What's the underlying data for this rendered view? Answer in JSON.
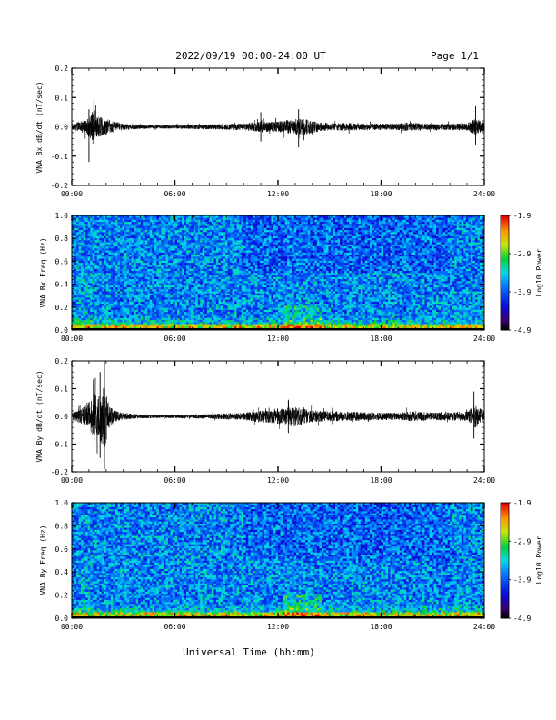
{
  "header": {
    "title": "2022/09/19  00:00-24:00 UT",
    "page": "Page 1/1"
  },
  "xlabel": "Universal Time (hh:mm)",
  "colorbar": {
    "label": "Log10 Power",
    "min": -4.9,
    "max": -1.9,
    "ticks": [
      "-1.9",
      "-2.9",
      "-3.9",
      "-4.9"
    ]
  },
  "chart_data": [
    {
      "id": "bx-timeseries",
      "type": "line",
      "ylabel": "VNA Bx dB/dt (nT/sec)",
      "xlim": [
        0,
        24
      ],
      "ylim": [
        -0.2,
        0.2
      ],
      "x_ticks": [
        "00:00",
        "06:00",
        "12:00",
        "18:00",
        "24:00"
      ],
      "y_ticks": [
        "0.2",
        "0.1",
        "0.0",
        "-0.1",
        "-0.2"
      ],
      "envelope": {
        "hours": [
          0,
          0.5,
          1.0,
          1.3,
          1.5,
          2.0,
          2.5,
          3.0,
          4.0,
          5.0,
          6.0,
          7.0,
          8.0,
          9.0,
          10.0,
          10.5,
          11.0,
          11.5,
          12.0,
          12.5,
          13.0,
          13.5,
          14.0,
          14.5,
          15.0,
          16.0,
          17.0,
          18.0,
          19.0,
          19.5,
          20.0,
          21.0,
          22.0,
          23.0,
          23.5,
          24.0
        ],
        "amplitude": [
          0.018,
          0.03,
          0.05,
          0.11,
          0.06,
          0.045,
          0.03,
          0.018,
          0.012,
          0.01,
          0.01,
          0.012,
          0.014,
          0.016,
          0.02,
          0.025,
          0.03,
          0.028,
          0.03,
          0.038,
          0.045,
          0.05,
          0.035,
          0.025,
          0.02,
          0.022,
          0.02,
          0.018,
          0.018,
          0.025,
          0.022,
          0.016,
          0.018,
          0.022,
          0.045,
          0.025
        ]
      }
    },
    {
      "id": "bx-spectrogram",
      "type": "heatmap",
      "ylabel": "VNA Bx Freq (Hz)",
      "xlim": [
        0,
        24
      ],
      "ylim": [
        0.0,
        1.0
      ],
      "x_ticks": [
        "00:00",
        "06:00",
        "12:00",
        "18:00",
        "24:00"
      ],
      "y_ticks": [
        "1.0",
        "0.8",
        "0.6",
        "0.4",
        "0.2",
        "0.0"
      ],
      "zlim": [
        -4.9,
        -1.9
      ]
    },
    {
      "id": "by-timeseries",
      "type": "line",
      "ylabel": "VNA By dB/dt (nT/sec)",
      "xlim": [
        0,
        24
      ],
      "ylim": [
        -0.2,
        0.2
      ],
      "x_ticks": [
        "00:00",
        "06:00",
        "12:00",
        "18:00",
        "24:00"
      ],
      "y_ticks": [
        "0.2",
        "0.1",
        "0.0",
        "-0.1",
        "-0.2"
      ],
      "envelope": {
        "hours": [
          0,
          0.5,
          1.0,
          1.3,
          1.6,
          1.9,
          2.2,
          2.5,
          3.0,
          4.0,
          5.0,
          6.0,
          7.0,
          8.0,
          9.0,
          10.0,
          10.5,
          11.0,
          11.5,
          12.0,
          12.5,
          13.0,
          13.5,
          14.0,
          15.0,
          16.0,
          17.0,
          18.0,
          19.0,
          19.5,
          20.0,
          21.0,
          22.0,
          23.0,
          23.5,
          24.0
        ],
        "amplitude": [
          0.02,
          0.04,
          0.08,
          0.15,
          0.14,
          0.2,
          0.06,
          0.035,
          0.02,
          0.012,
          0.01,
          0.01,
          0.012,
          0.014,
          0.018,
          0.022,
          0.03,
          0.035,
          0.04,
          0.045,
          0.05,
          0.06,
          0.045,
          0.035,
          0.03,
          0.028,
          0.025,
          0.022,
          0.022,
          0.03,
          0.028,
          0.022,
          0.025,
          0.03,
          0.07,
          0.03
        ]
      }
    },
    {
      "id": "by-spectrogram",
      "type": "heatmap",
      "ylabel": "VNA By Freq (Hz)",
      "xlim": [
        0,
        24
      ],
      "ylim": [
        0.0,
        1.0
      ],
      "x_ticks": [
        "00:00",
        "06:00",
        "12:00",
        "18:00",
        "24:00"
      ],
      "y_ticks": [
        "1.0",
        "0.8",
        "0.6",
        "0.4",
        "0.2",
        "0.0"
      ],
      "zlim": [
        -4.9,
        -1.9
      ]
    }
  ]
}
